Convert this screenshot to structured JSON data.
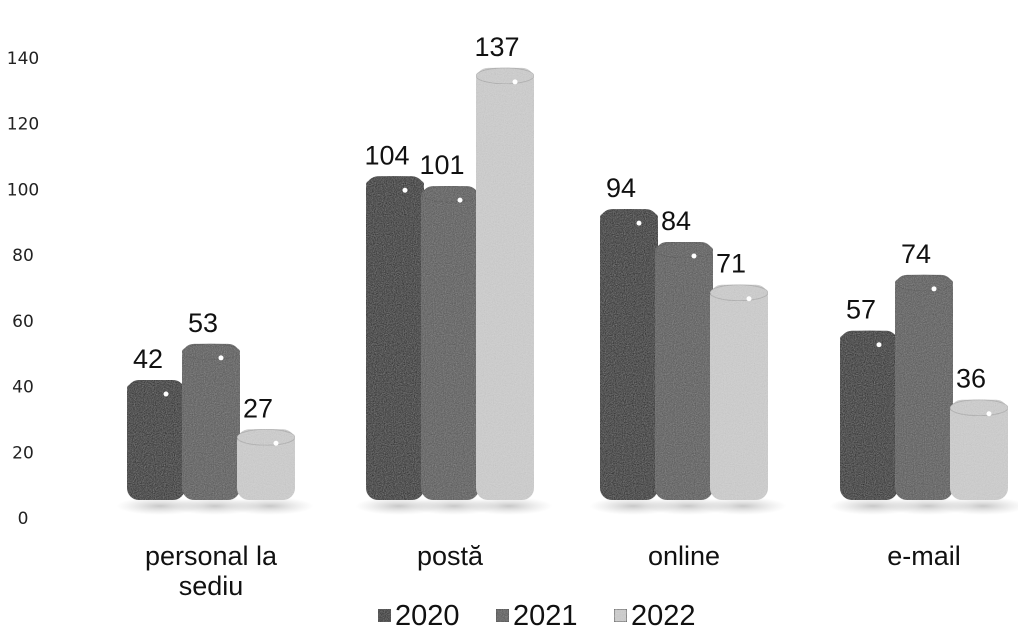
{
  "chart_data": {
    "type": "bar",
    "categories": [
      [
        "personal la",
        "sediu"
      ],
      [
        "postă"
      ],
      [
        "online"
      ],
      [
        "e-mail"
      ]
    ],
    "series": [
      {
        "name": "2020",
        "values": [
          42,
          104,
          94,
          57
        ],
        "color": "#1e1e1e"
      },
      {
        "name": "2021",
        "values": [
          53,
          101,
          84,
          74
        ],
        "color": "#555555"
      },
      {
        "name": "2022",
        "values": [
          27,
          137,
          71,
          36
        ],
        "color": "#cfcfcf"
      }
    ],
    "title": "",
    "xlabel": "",
    "ylabel": "",
    "ylim": [
      0,
      140
    ],
    "yticks": [
      0,
      20,
      40,
      60,
      80,
      100,
      120,
      140
    ],
    "grid": false,
    "legend_position": "bottom"
  }
}
